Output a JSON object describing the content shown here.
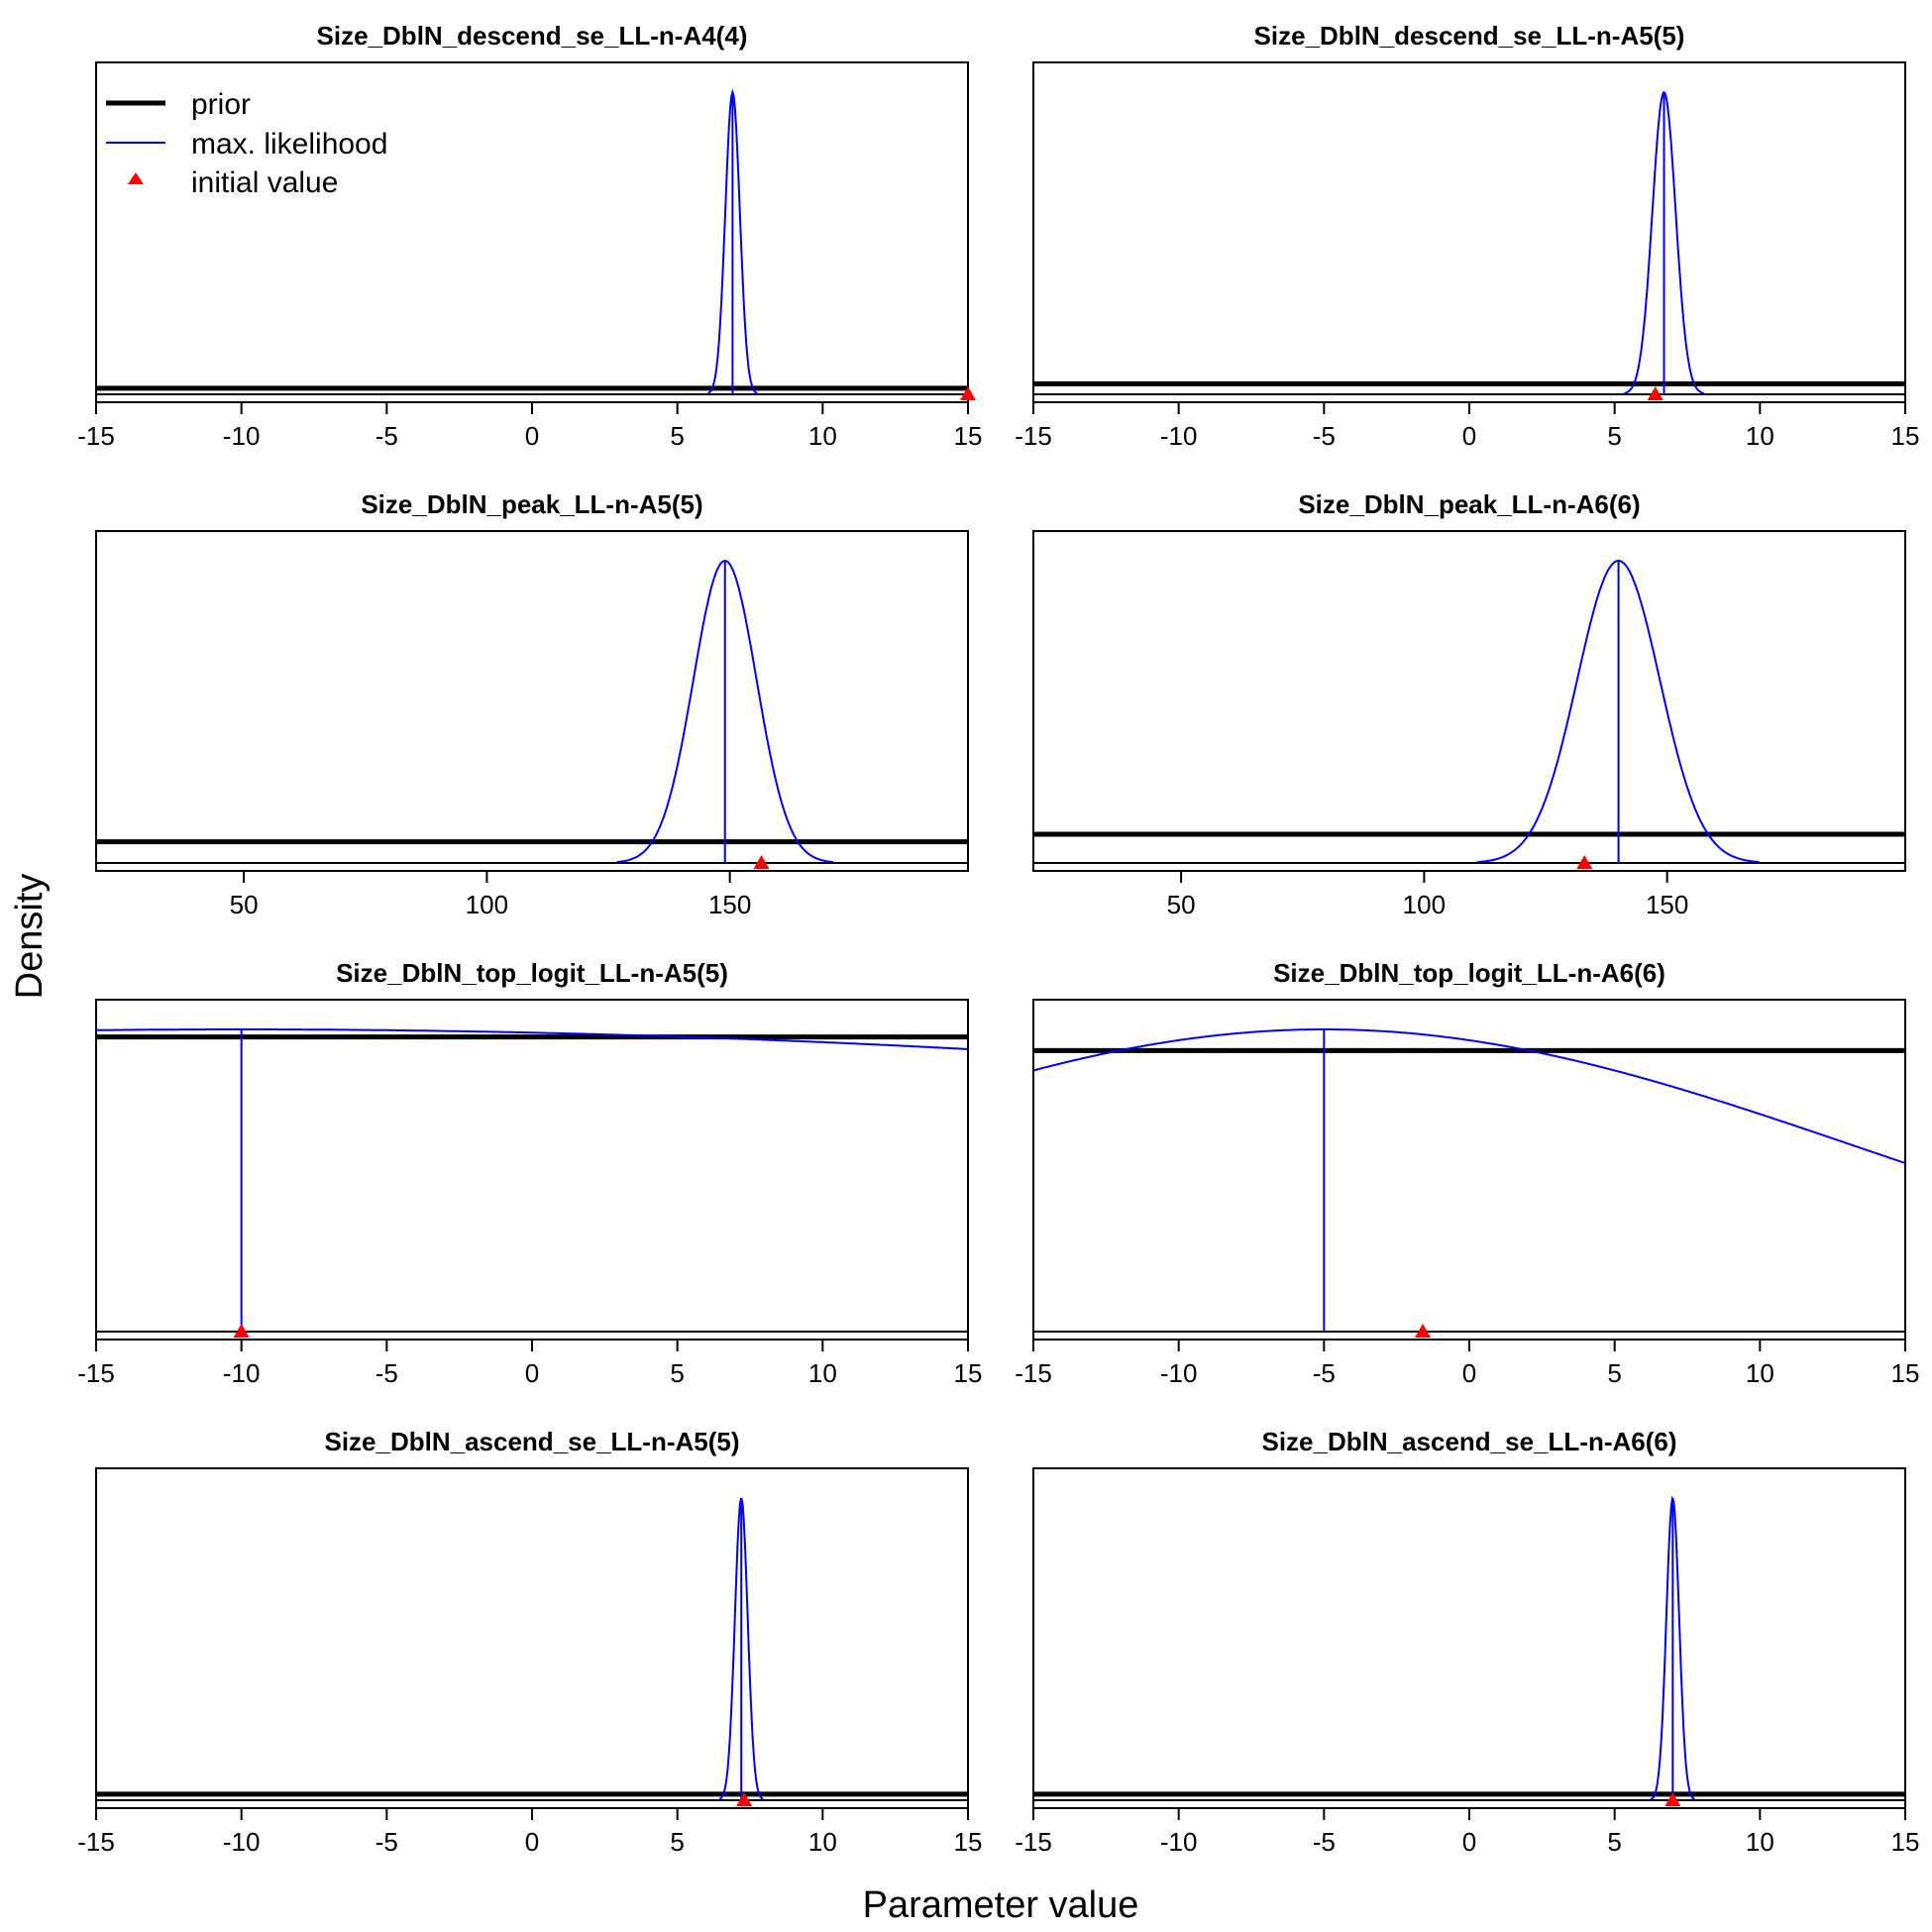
{
  "chart_data": {
    "type": "line",
    "xlabel": "Parameter value",
    "ylabel": "Density",
    "legend": {
      "placement": "top-left of first panel",
      "entries": [
        {
          "label": "prior",
          "color": "#000000"
        },
        {
          "label": "max. likelihood",
          "color": "#0000ff"
        },
        {
          "label": "initial value",
          "color": "#ff0000"
        }
      ]
    },
    "colors": {
      "prior": "#000000",
      "mle": "#0000ff",
      "initial": "#ff0000"
    },
    "panels": [
      {
        "title": "Size_DblN_descend_se_LL-n-A4(4)",
        "xlim": [
          -15,
          15
        ],
        "xticks": [
          -15,
          -10,
          -5,
          0,
          5,
          10,
          15
        ],
        "prior_level": 0.02,
        "mle": {
          "mean": 6.9,
          "sd": 0.25
        },
        "initial": 15
      },
      {
        "title": "Size_DblN_descend_se_LL-n-A5(5)",
        "xlim": [
          -15,
          15
        ],
        "xticks": [
          -15,
          -10,
          -5,
          0,
          5,
          10,
          15
        ],
        "prior_level": 0.035,
        "mle": {
          "mean": 6.7,
          "sd": 0.4
        },
        "initial": 6.4
      },
      {
        "title": "Size_DblN_peak_LL-n-A5(5)",
        "xlim": [
          19.6,
          199
        ],
        "xticks": [
          50,
          100,
          150
        ],
        "prior_level": 0.07,
        "mle": {
          "mean": 149,
          "sd": 6.5
        },
        "initial": 156.5
      },
      {
        "title": "Size_DblN_peak_LL-n-A6(6)",
        "xlim": [
          19.6,
          199
        ],
        "xticks": [
          50,
          100,
          150
        ],
        "prior_level": 0.095,
        "mle": {
          "mean": 140,
          "sd": 8.5
        },
        "initial": 133
      },
      {
        "title": "Size_DblN_top_logit_LL-n-A5(5)",
        "xlim": [
          -15,
          15
        ],
        "xticks": [
          -15,
          -10,
          -5,
          0,
          5,
          10,
          15
        ],
        "prior_level": 0.975,
        "mle": {
          "mean": -10,
          "sd": 68
        },
        "initial": -10
      },
      {
        "title": "Size_DblN_top_logit_LL-n-A6(6)",
        "xlim": [
          -15,
          15
        ],
        "xticks": [
          -15,
          -10,
          -5,
          0,
          5,
          10,
          15
        ],
        "prior_level": 0.93,
        "mle": {
          "mean": -5,
          "sd": 18.5
        },
        "initial": -1.6
      },
      {
        "title": "Size_DblN_ascend_se_LL-n-A5(5)",
        "xlim": [
          -15,
          15
        ],
        "xticks": [
          -15,
          -10,
          -5,
          0,
          5,
          10,
          15
        ],
        "prior_level": 0.02,
        "mle": {
          "mean": 7.2,
          "sd": 0.22
        },
        "initial": 7.3
      },
      {
        "title": "Size_DblN_ascend_se_LL-n-A6(6)",
        "xlim": [
          -15,
          15
        ],
        "xticks": [
          -15,
          -10,
          -5,
          0,
          5,
          10,
          15
        ],
        "prior_level": 0.02,
        "mle": {
          "mean": 7.0,
          "sd": 0.22
        },
        "initial": 7.0
      }
    ]
  }
}
